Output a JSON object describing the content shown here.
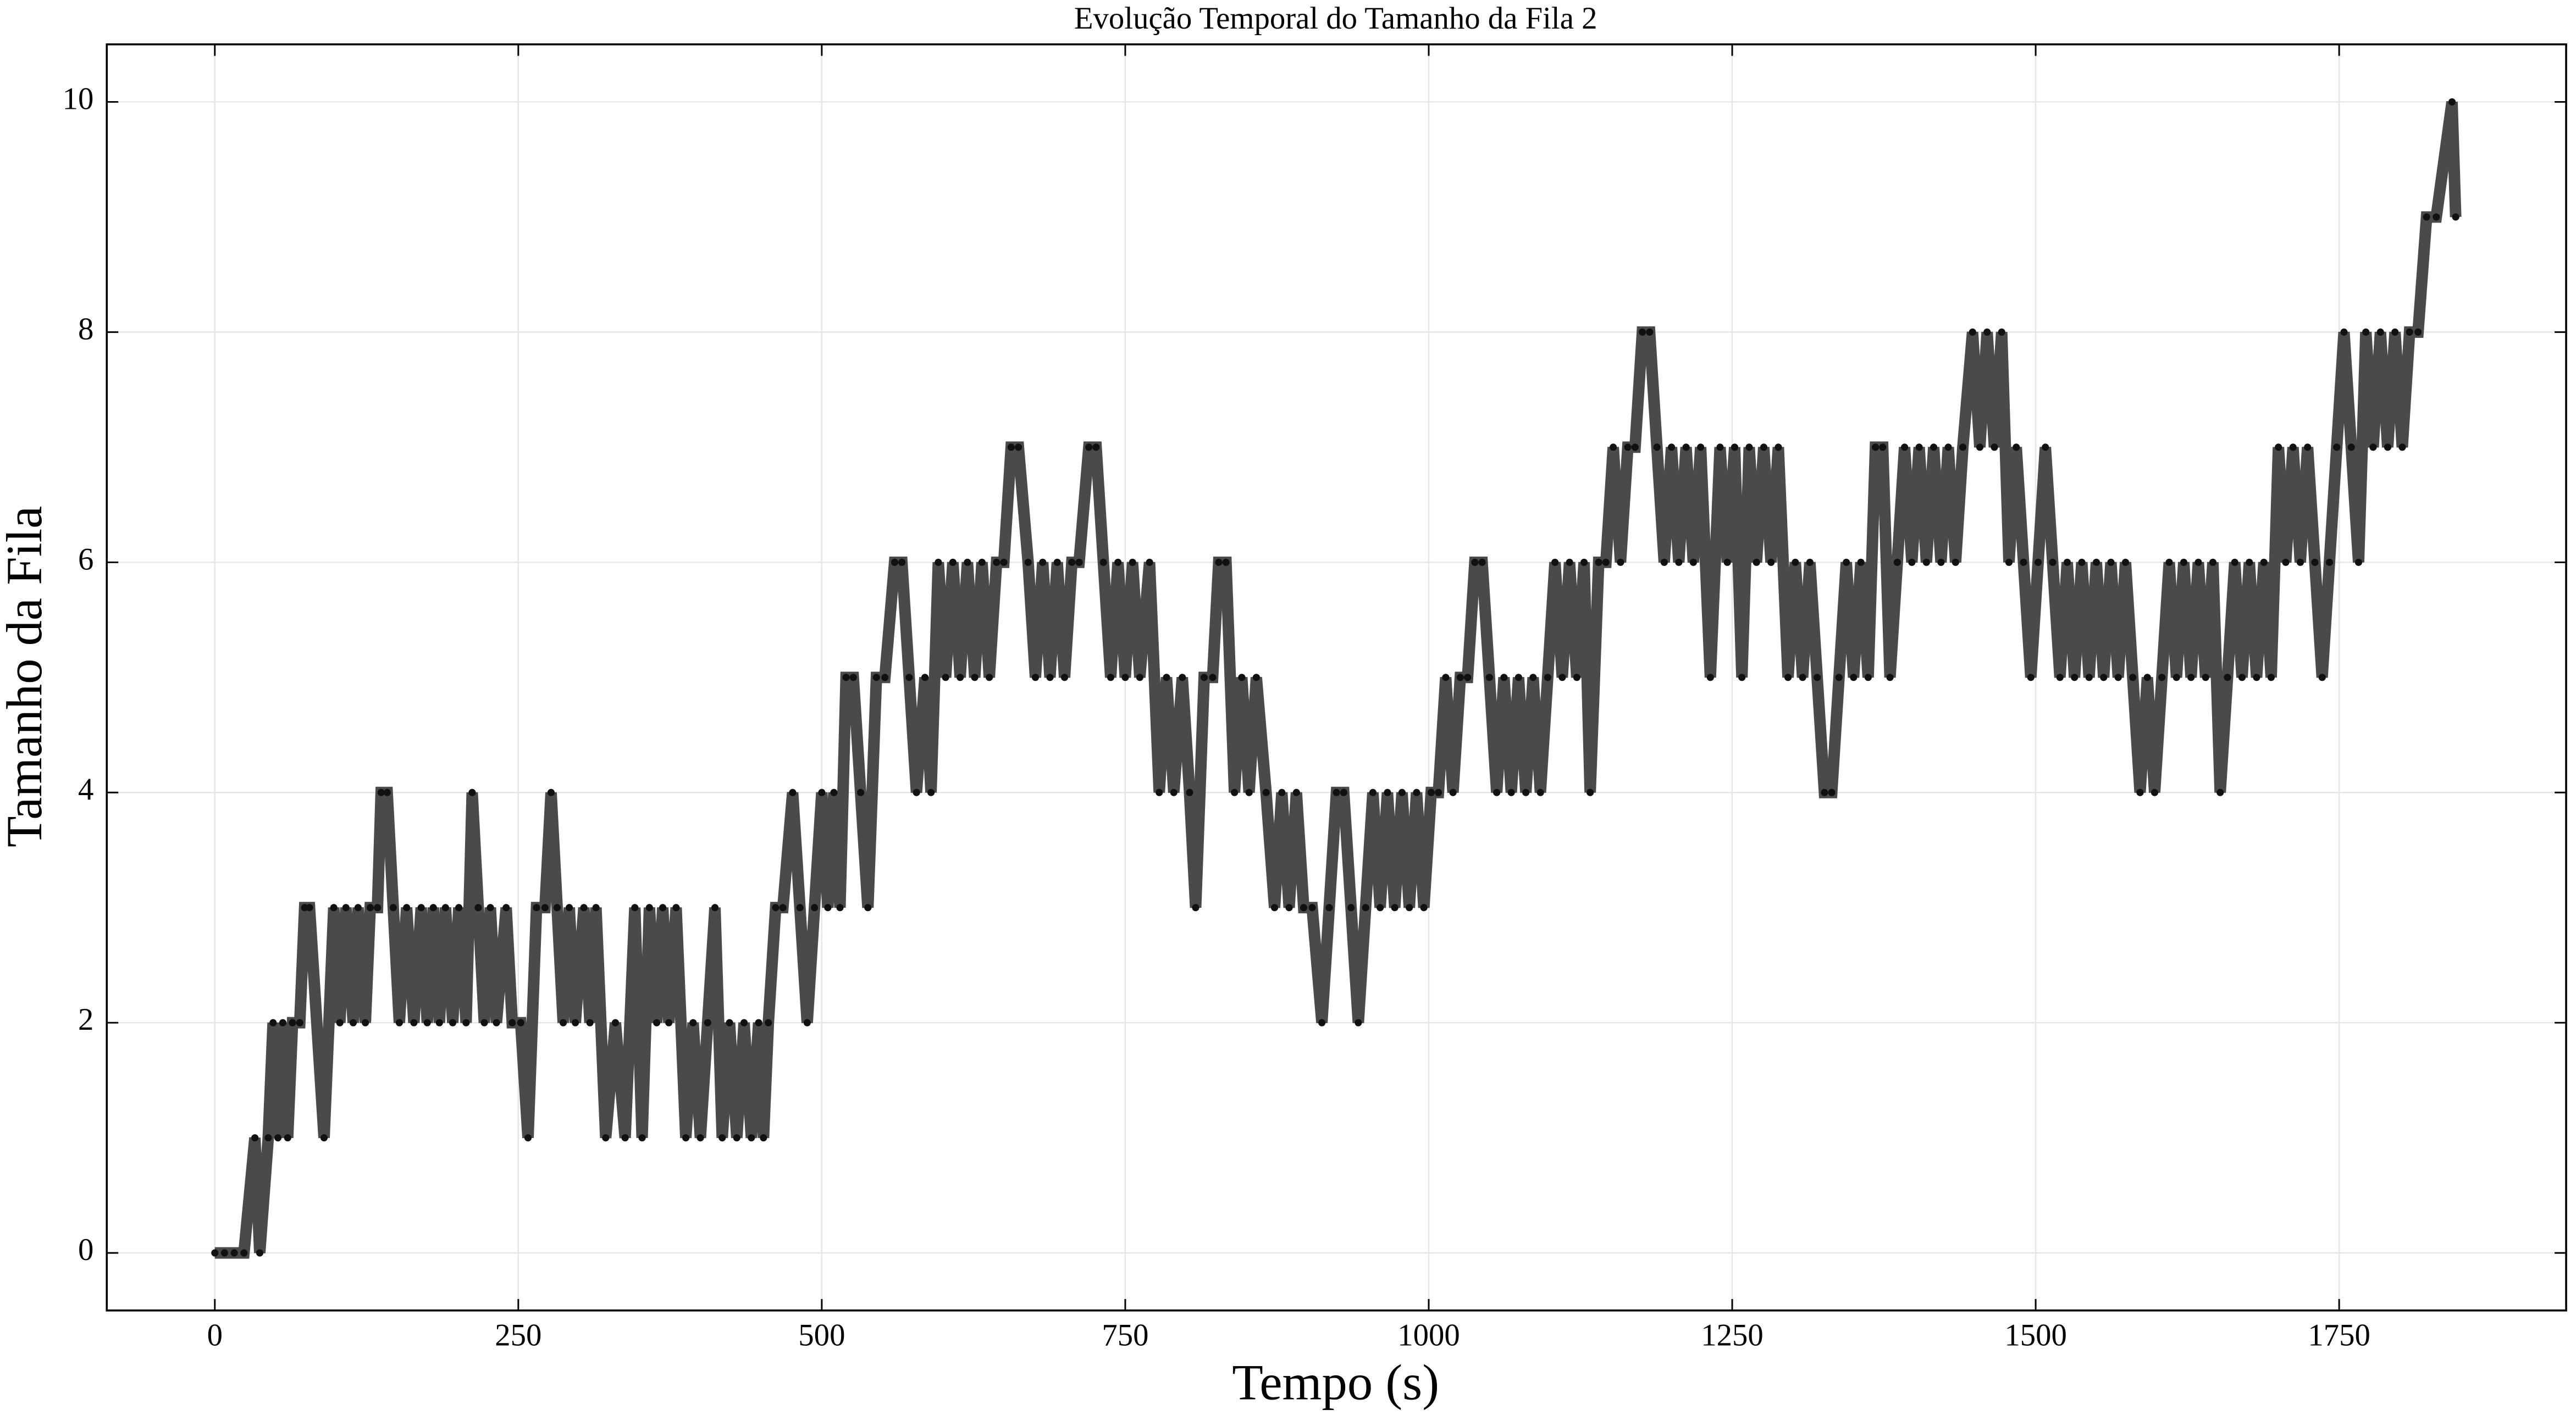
{
  "chart_data": {
    "type": "line",
    "title": "Evolução Temporal do Tamanho da Fila 2",
    "xlabel": "Tempo (s)",
    "ylabel": "Tamanho da Fila",
    "color": "#4a4a4a",
    "marker_color": "#111111",
    "grid": true,
    "xlim": [
      -89,
      1937
    ],
    "ylim": [
      -0.5,
      10.5
    ],
    "xticks": [
      0,
      250,
      500,
      750,
      1000,
      1250,
      1500,
      1750
    ],
    "yticks": [
      0,
      2,
      4,
      6,
      8,
      10
    ],
    "x": [
      0,
      8,
      16,
      24,
      33,
      37,
      44,
      48,
      52,
      56,
      60,
      64,
      70,
      74,
      78,
      90,
      98,
      103,
      108,
      114,
      118,
      124,
      128,
      134,
      137,
      142,
      147,
      152,
      158,
      164,
      170,
      175,
      180,
      185,
      190,
      196,
      201,
      207,
      212,
      217,
      222,
      227,
      232,
      240,
      245,
      252,
      258,
      265,
      272,
      277,
      282,
      287,
      292,
      297,
      304,
      309,
      314,
      322,
      330,
      338,
      346,
      352,
      358,
      364,
      369,
      374,
      380,
      388,
      394,
      400,
      406,
      412,
      418,
      424,
      430,
      436,
      442,
      448,
      452,
      456,
      462,
      468,
      476,
      482,
      488,
      494,
      500,
      505,
      510,
      515,
      520,
      526,
      532,
      538,
      545,
      552,
      560,
      566,
      572,
      578,
      585,
      590,
      596,
      602,
      608,
      614,
      620,
      626,
      632,
      638,
      644,
      650,
      656,
      662,
      670,
      676,
      682,
      688,
      694,
      700,
      706,
      712,
      720,
      726,
      732,
      738,
      744,
      750,
      756,
      762,
      770,
      778,
      784,
      790,
      797,
      803,
      808,
      815,
      822,
      827,
      833,
      840,
      846,
      852,
      858,
      866,
      873,
      879,
      885,
      891,
      897,
      904,
      912,
      918,
      924,
      930,
      936,
      942,
      948,
      954,
      960,
      966,
      972,
      978,
      984,
      990,
      996,
      1002,
      1008,
      1014,
      1020,
      1026,
      1032,
      1038,
      1044,
      1050,
      1056,
      1062,
      1068,
      1074,
      1080,
      1086,
      1092,
      1098,
      1104,
      1110,
      1116,
      1122,
      1128,
      1133,
      1140,
      1146,
      1152,
      1158,
      1164,
      1170,
      1176,
      1182,
      1188,
      1194,
      1200,
      1206,
      1212,
      1218,
      1224,
      1232,
      1240,
      1246,
      1252,
      1258,
      1264,
      1270,
      1276,
      1282,
      1288,
      1296,
      1302,
      1308,
      1314,
      1320,
      1326,
      1332,
      1338,
      1344,
      1350,
      1356,
      1362,
      1368,
      1374,
      1380,
      1386,
      1392,
      1398,
      1404,
      1410,
      1416,
      1422,
      1428,
      1434,
      1440,
      1448,
      1454,
      1460,
      1466,
      1472,
      1478,
      1484,
      1490,
      1496,
      1502,
      1508,
      1514,
      1520,
      1526,
      1532,
      1538,
      1544,
      1550,
      1556,
      1562,
      1568,
      1574,
      1580,
      1586,
      1592,
      1598,
      1604,
      1610,
      1616,
      1622,
      1628,
      1634,
      1640,
      1646,
      1652,
      1658,
      1664,
      1670,
      1676,
      1682,
      1688,
      1694,
      1700,
      1706,
      1712,
      1718,
      1724,
      1730,
      1736,
      1742,
      1748,
      1754,
      1760,
      1766,
      1772,
      1778,
      1784,
      1790,
      1796,
      1802,
      1808,
      1815,
      1822,
      1830,
      1843,
      1846
    ],
    "values": [
      0,
      0,
      0,
      0,
      1,
      0,
      1,
      2,
      1,
      2,
      1,
      2,
      2,
      3,
      3,
      1,
      3,
      2,
      3,
      2,
      3,
      2,
      3,
      3,
      4,
      4,
      3,
      2,
      3,
      2,
      3,
      2,
      3,
      2,
      3,
      2,
      3,
      2,
      4,
      3,
      2,
      3,
      2,
      3,
      2,
      2,
      1,
      3,
      3,
      4,
      3,
      2,
      3,
      2,
      3,
      2,
      3,
      1,
      2,
      1,
      3,
      1,
      3,
      2,
      3,
      2,
      3,
      1,
      2,
      1,
      2,
      3,
      1,
      2,
      1,
      2,
      1,
      2,
      1,
      2,
      3,
      3,
      4,
      3,
      2,
      3,
      4,
      3,
      4,
      3,
      5,
      5,
      4,
      3,
      5,
      5,
      6,
      6,
      5,
      4,
      5,
      4,
      6,
      5,
      6,
      5,
      6,
      5,
      6,
      5,
      6,
      6,
      7,
      7,
      6,
      5,
      6,
      5,
      6,
      5,
      6,
      6,
      7,
      7,
      6,
      5,
      6,
      5,
      6,
      5,
      6,
      4,
      5,
      4,
      5,
      4,
      3,
      5,
      5,
      6,
      6,
      4,
      5,
      4,
      5,
      4,
      3,
      4,
      3,
      4,
      3,
      3,
      2,
      3,
      4,
      4,
      3,
      2,
      3,
      4,
      3,
      4,
      3,
      4,
      3,
      4,
      3,
      4,
      4,
      5,
      4,
      5,
      5,
      6,
      6,
      5,
      4,
      5,
      4,
      5,
      4,
      5,
      4,
      5,
      6,
      5,
      6,
      5,
      6,
      4,
      6,
      6,
      7,
      6,
      7,
      7,
      8,
      8,
      7,
      6,
      7,
      6,
      7,
      6,
      7,
      5,
      7,
      6,
      7,
      5,
      7,
      6,
      7,
      6,
      7,
      5,
      6,
      5,
      6,
      5,
      4,
      4,
      5,
      6,
      5,
      6,
      5,
      7,
      7,
      5,
      6,
      7,
      6,
      7,
      6,
      7,
      6,
      7,
      6,
      7,
      8,
      7,
      8,
      7,
      8,
      6,
      7,
      6,
      5,
      6,
      7,
      6,
      5,
      6,
      5,
      6,
      5,
      6,
      5,
      6,
      5,
      6,
      5,
      4,
      5,
      4,
      5,
      6,
      5,
      6,
      5,
      6,
      5,
      6,
      4,
      5,
      6,
      5,
      6,
      5,
      6,
      5,
      7,
      6,
      7,
      6,
      7,
      6,
      5,
      6,
      7,
      8,
      7,
      6,
      8,
      7,
      8,
      7,
      8,
      7,
      8,
      8,
      9,
      9,
      10,
      9
    ]
  }
}
